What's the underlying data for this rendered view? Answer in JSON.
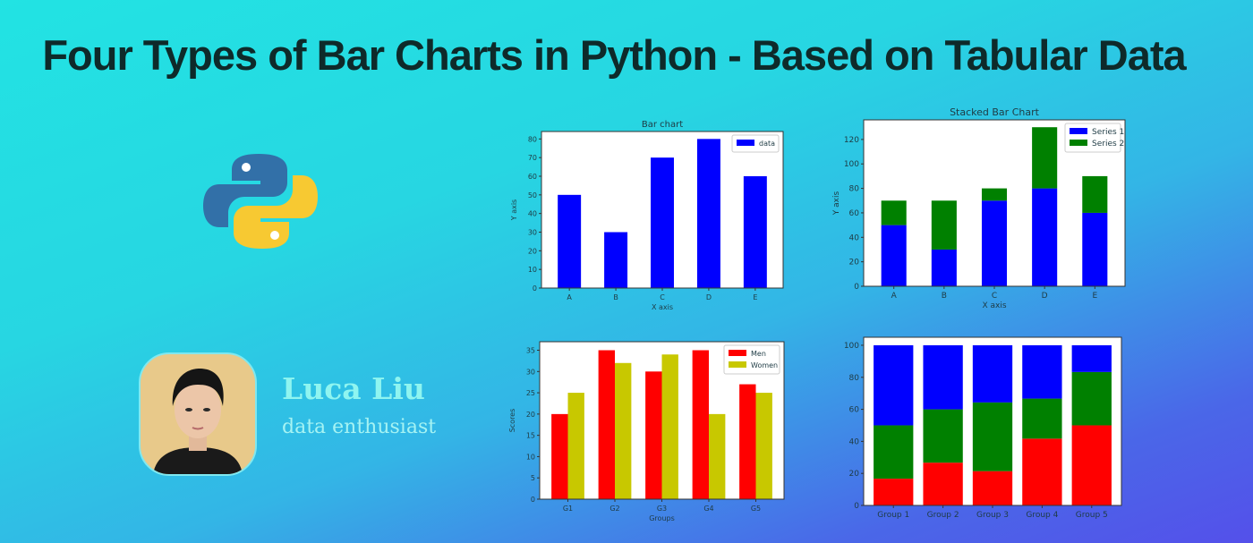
{
  "title": "Four Types of Bar Charts in Python - Based on Tabular Data",
  "author": {
    "name": "Luca Liu",
    "tagline": "data enthusiast"
  },
  "icons": {
    "logo": "python-logo-icon",
    "avatar": "author-photo"
  },
  "chart_data": [
    {
      "type": "bar",
      "title": "Bar chart",
      "xlabel": "X axis",
      "ylabel": "Y axis",
      "categories": [
        "A",
        "B",
        "C",
        "D",
        "E"
      ],
      "series": [
        {
          "name": "data",
          "values": [
            50,
            30,
            70,
            80,
            60
          ],
          "color": "#0000ff"
        }
      ],
      "ylim": [
        0,
        84
      ],
      "yticks": [
        0,
        10,
        20,
        30,
        40,
        50,
        60,
        70,
        80
      ],
      "legend": "top-right"
    },
    {
      "type": "bar",
      "stacked": true,
      "title": "Stacked Bar Chart",
      "xlabel": "X axis",
      "ylabel": "Y axis",
      "categories": [
        "A",
        "B",
        "C",
        "D",
        "E"
      ],
      "series": [
        {
          "name": "Series 1",
          "values": [
            50,
            30,
            70,
            80,
            60
          ],
          "color": "#0000ff"
        },
        {
          "name": "Series 2",
          "values": [
            20,
            40,
            10,
            50,
            30
          ],
          "color": "#008000"
        }
      ],
      "ylim": [
        0,
        136
      ],
      "yticks": [
        0,
        20,
        40,
        60,
        80,
        100,
        120
      ],
      "legend": "top-right"
    },
    {
      "type": "bar",
      "grouped": true,
      "title": "",
      "xlabel": "Groups",
      "ylabel": "Scores",
      "categories": [
        "G1",
        "G2",
        "G3",
        "G4",
        "G5"
      ],
      "series": [
        {
          "name": "Men",
          "values": [
            20,
            35,
            30,
            35,
            27
          ],
          "color": "#ff0000"
        },
        {
          "name": "Women",
          "values": [
            25,
            32,
            34,
            20,
            25
          ],
          "color": "#c8c800"
        }
      ],
      "ylim": [
        0,
        37
      ],
      "yticks": [
        0,
        5,
        10,
        15,
        20,
        25,
        30,
        35
      ],
      "legend": "top-right"
    },
    {
      "type": "bar",
      "stacked": true,
      "title": "",
      "xlabel": "",
      "ylabel": "",
      "categories": [
        "Group 1",
        "Group 2",
        "Group 3",
        "Group 4",
        "Group 5"
      ],
      "series": [
        {
          "values": [
            16.7,
            26.7,
            21.4,
            41.7,
            50.0
          ],
          "color": "#ff0000"
        },
        {
          "values": [
            33.3,
            33.3,
            42.9,
            25.0,
            33.3
          ],
          "color": "#008000"
        },
        {
          "values": [
            50.0,
            40.0,
            35.7,
            33.3,
            16.7
          ],
          "color": "#0000ff"
        }
      ],
      "ylim": [
        0,
        105
      ],
      "yticks": [
        0,
        20,
        40,
        60,
        80,
        100
      ],
      "legend": "none"
    }
  ]
}
